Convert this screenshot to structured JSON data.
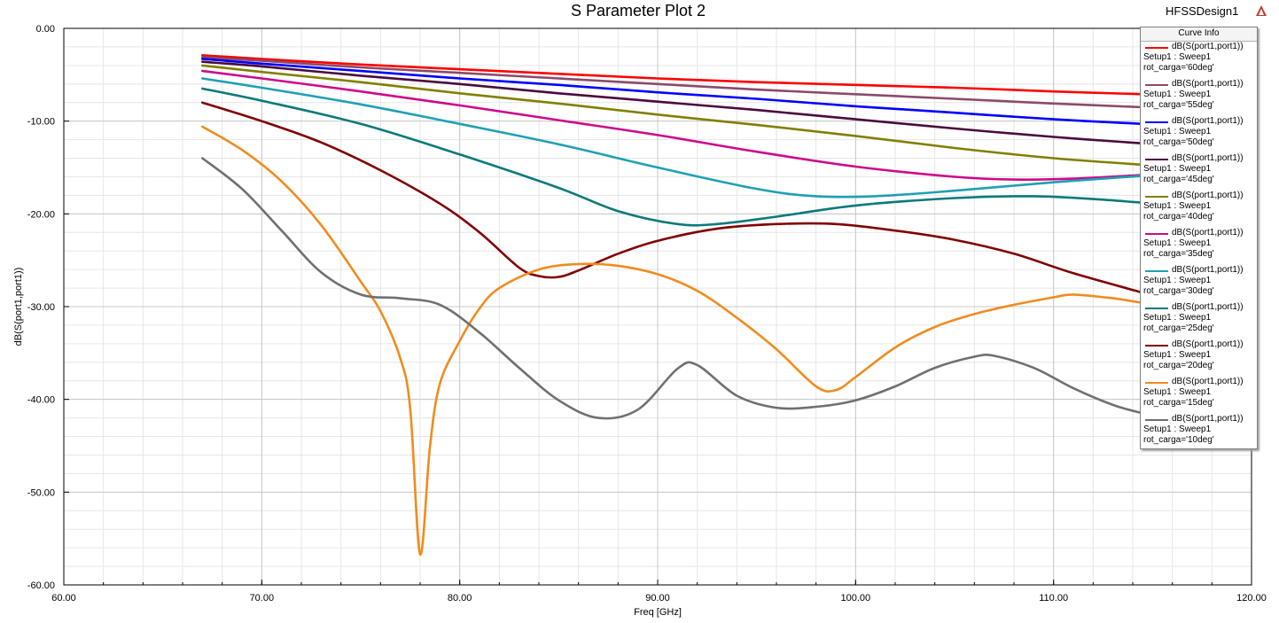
{
  "header": {
    "title": "S Parameter Plot 2",
    "design": "HFSSDesign1",
    "logo_icon": "ansys-logo-icon"
  },
  "legend": {
    "title": "Curve Info"
  },
  "chart_data": {
    "type": "line",
    "title": "S Parameter Plot 2",
    "xlabel": "Freq [GHz]",
    "ylabel": "dB(S(port1,port1))",
    "xlim": [
      60,
      120
    ],
    "ylim": [
      -60,
      0
    ],
    "xticks": [
      "60.00",
      "70.00",
      "80.00",
      "90.00",
      "100.00",
      "110.00",
      "120.00"
    ],
    "yticks": [
      "0.00",
      "-10.00",
      "-20.00",
      "-30.00",
      "-40.00",
      "-50.00",
      "-60.00"
    ],
    "grid": true,
    "legend_position": "top-right",
    "series": [
      {
        "name": "dB(S(port1,port1))",
        "setup": "Setup1 : Sweep1",
        "param": "rot_carga='60deg'",
        "color": "#ff0000",
        "points": [
          [
            67,
            -2.9
          ],
          [
            70,
            -3.3
          ],
          [
            75,
            -3.9
          ],
          [
            80,
            -4.4
          ],
          [
            85,
            -4.9
          ],
          [
            90,
            -5.4
          ],
          [
            95,
            -5.8
          ],
          [
            100,
            -6.1
          ],
          [
            105,
            -6.4
          ],
          [
            110,
            -6.8
          ],
          [
            114.5,
            -7.1
          ]
        ]
      },
      {
        "name": "dB(S(port1,port1))",
        "setup": "Setup1 : Sweep1",
        "param": "rot_carga='55deg'",
        "color": "#8b4a6b",
        "points": [
          [
            67,
            -3.1
          ],
          [
            70,
            -3.5
          ],
          [
            75,
            -4.2
          ],
          [
            80,
            -4.8
          ],
          [
            85,
            -5.4
          ],
          [
            90,
            -6.0
          ],
          [
            95,
            -6.6
          ],
          [
            100,
            -7.1
          ],
          [
            105,
            -7.6
          ],
          [
            110,
            -8.1
          ],
          [
            114.5,
            -8.5
          ]
        ]
      },
      {
        "name": "dB(S(port1,port1))",
        "setup": "Setup1 : Sweep1",
        "param": "rot_carga='50deg'",
        "color": "#0000ff",
        "points": [
          [
            67,
            -3.3
          ],
          [
            70,
            -3.8
          ],
          [
            75,
            -4.6
          ],
          [
            80,
            -5.4
          ],
          [
            85,
            -6.1
          ],
          [
            90,
            -6.9
          ],
          [
            95,
            -7.6
          ],
          [
            100,
            -8.4
          ],
          [
            105,
            -9.1
          ],
          [
            110,
            -9.8
          ],
          [
            114.5,
            -10.3
          ]
        ]
      },
      {
        "name": "dB(S(port1,port1))",
        "setup": "Setup1 : Sweep1",
        "param": "rot_carga='45deg'",
        "color": "#4b0a3c",
        "points": [
          [
            67,
            -3.6
          ],
          [
            70,
            -4.1
          ],
          [
            75,
            -5.1
          ],
          [
            80,
            -6.0
          ],
          [
            85,
            -7.0
          ],
          [
            90,
            -7.9
          ],
          [
            95,
            -8.8
          ],
          [
            100,
            -9.8
          ],
          [
            105,
            -10.8
          ],
          [
            110,
            -11.7
          ],
          [
            114.5,
            -12.4
          ]
        ]
      },
      {
        "name": "dB(S(port1,port1))",
        "setup": "Setup1 : Sweep1",
        "param": "rot_carga='40deg'",
        "color": "#808000",
        "points": [
          [
            67,
            -4.0
          ],
          [
            70,
            -4.7
          ],
          [
            75,
            -5.8
          ],
          [
            80,
            -7.0
          ],
          [
            85,
            -8.1
          ],
          [
            90,
            -9.3
          ],
          [
            95,
            -10.4
          ],
          [
            100,
            -11.6
          ],
          [
            105,
            -12.9
          ],
          [
            110,
            -14.0
          ],
          [
            114.5,
            -14.7
          ]
        ]
      },
      {
        "name": "dB(S(port1,port1))",
        "setup": "Setup1 : Sweep1",
        "param": "rot_carga='35deg'",
        "color": "#cc0a8c",
        "points": [
          [
            67,
            -4.6
          ],
          [
            70,
            -5.4
          ],
          [
            75,
            -6.8
          ],
          [
            80,
            -8.3
          ],
          [
            85,
            -9.9
          ],
          [
            90,
            -11.5
          ],
          [
            95,
            -13.3
          ],
          [
            100,
            -14.9
          ],
          [
            105,
            -16.0
          ],
          [
            108,
            -16.3
          ],
          [
            111,
            -16.2
          ],
          [
            114.5,
            -15.8
          ]
        ]
      },
      {
        "name": "dB(S(port1,port1))",
        "setup": "Setup1 : Sweep1",
        "param": "rot_carga='30deg'",
        "color": "#1fa0b4",
        "points": [
          [
            67,
            -5.4
          ],
          [
            70,
            -6.4
          ],
          [
            75,
            -8.2
          ],
          [
            80,
            -10.3
          ],
          [
            85,
            -12.5
          ],
          [
            90,
            -15.0
          ],
          [
            95,
            -17.3
          ],
          [
            98,
            -18.1
          ],
          [
            101,
            -18.1
          ],
          [
            105,
            -17.5
          ],
          [
            110,
            -16.6
          ],
          [
            114.5,
            -15.9
          ]
        ]
      },
      {
        "name": "dB(S(port1,port1))",
        "setup": "Setup1 : Sweep1",
        "param": "rot_carga='25deg'",
        "color": "#0a7a7a",
        "points": [
          [
            67,
            -6.5
          ],
          [
            70,
            -7.8
          ],
          [
            75,
            -10.3
          ],
          [
            80,
            -13.6
          ],
          [
            85,
            -17.2
          ],
          [
            88,
            -19.7
          ],
          [
            91,
            -21.1
          ],
          [
            93,
            -21.1
          ],
          [
            96,
            -20.3
          ],
          [
            100,
            -19.1
          ],
          [
            105,
            -18.3
          ],
          [
            109,
            -18.1
          ],
          [
            112,
            -18.4
          ],
          [
            114.5,
            -18.8
          ]
        ]
      },
      {
        "name": "dB(S(port1,port1))",
        "setup": "Setup1 : Sweep1",
        "param": "rot_carga='20deg'",
        "color": "#800000",
        "points": [
          [
            67,
            -8.0
          ],
          [
            70,
            -10.0
          ],
          [
            73,
            -12.3
          ],
          [
            76,
            -15.3
          ],
          [
            79,
            -18.9
          ],
          [
            81,
            -22.0
          ],
          [
            83,
            -25.8
          ],
          [
            84,
            -26.7
          ],
          [
            85,
            -26.8
          ],
          [
            86,
            -26.1
          ],
          [
            88,
            -24.3
          ],
          [
            90,
            -22.9
          ],
          [
            93,
            -21.6
          ],
          [
            96,
            -21.1
          ],
          [
            99,
            -21.1
          ],
          [
            102,
            -21.8
          ],
          [
            105,
            -22.8
          ],
          [
            108,
            -24.3
          ],
          [
            111,
            -26.4
          ],
          [
            114.5,
            -28.5
          ]
        ]
      },
      {
        "name": "dB(S(port1,port1))",
        "setup": "Setup1 : Sweep1",
        "param": "rot_carga='15deg'",
        "color": "#f08c1e",
        "points": [
          [
            67,
            -10.6
          ],
          [
            69,
            -13.1
          ],
          [
            71,
            -16.5
          ],
          [
            73,
            -21.2
          ],
          [
            75,
            -27.3
          ],
          [
            76,
            -30.5
          ],
          [
            77,
            -35.6
          ],
          [
            77.5,
            -41.0
          ],
          [
            78,
            -56.7
          ],
          [
            78.5,
            -45.0
          ],
          [
            79,
            -38.3
          ],
          [
            80,
            -33.7
          ],
          [
            81,
            -30.2
          ],
          [
            82,
            -28.0
          ],
          [
            84,
            -26.0
          ],
          [
            86,
            -25.4
          ],
          [
            88,
            -25.6
          ],
          [
            90,
            -26.5
          ],
          [
            92,
            -28.3
          ],
          [
            94,
            -31.2
          ],
          [
            96,
            -34.6
          ],
          [
            98,
            -38.6
          ],
          [
            99,
            -39.0
          ],
          [
            100,
            -37.6
          ],
          [
            102,
            -34.4
          ],
          [
            104,
            -32.2
          ],
          [
            106,
            -30.8
          ],
          [
            108,
            -29.8
          ],
          [
            110,
            -29.0
          ],
          [
            111,
            -28.7
          ],
          [
            113,
            -29.1
          ],
          [
            114.5,
            -29.6
          ]
        ]
      },
      {
        "name": "dB(S(port1,port1))",
        "setup": "Setup1 : Sweep1",
        "param": "rot_carga='10deg'",
        "color": "#707070",
        "points": [
          [
            67,
            -14.0
          ],
          [
            69,
            -17.3
          ],
          [
            71,
            -21.8
          ],
          [
            73,
            -26.3
          ],
          [
            75,
            -28.7
          ],
          [
            77,
            -29.1
          ],
          [
            79,
            -29.8
          ],
          [
            81,
            -32.8
          ],
          [
            83,
            -36.6
          ],
          [
            85,
            -40.1
          ],
          [
            87,
            -42.0
          ],
          [
            89,
            -41.1
          ],
          [
            91,
            -36.7
          ],
          [
            92,
            -36.3
          ],
          [
            94,
            -39.6
          ],
          [
            96,
            -40.9
          ],
          [
            98,
            -40.8
          ],
          [
            100,
            -40.1
          ],
          [
            102,
            -38.6
          ],
          [
            104,
            -36.6
          ],
          [
            106,
            -35.4
          ],
          [
            107,
            -35.3
          ],
          [
            109,
            -36.6
          ],
          [
            111,
            -38.8
          ],
          [
            113,
            -40.6
          ],
          [
            114.5,
            -41.5
          ]
        ]
      }
    ]
  }
}
